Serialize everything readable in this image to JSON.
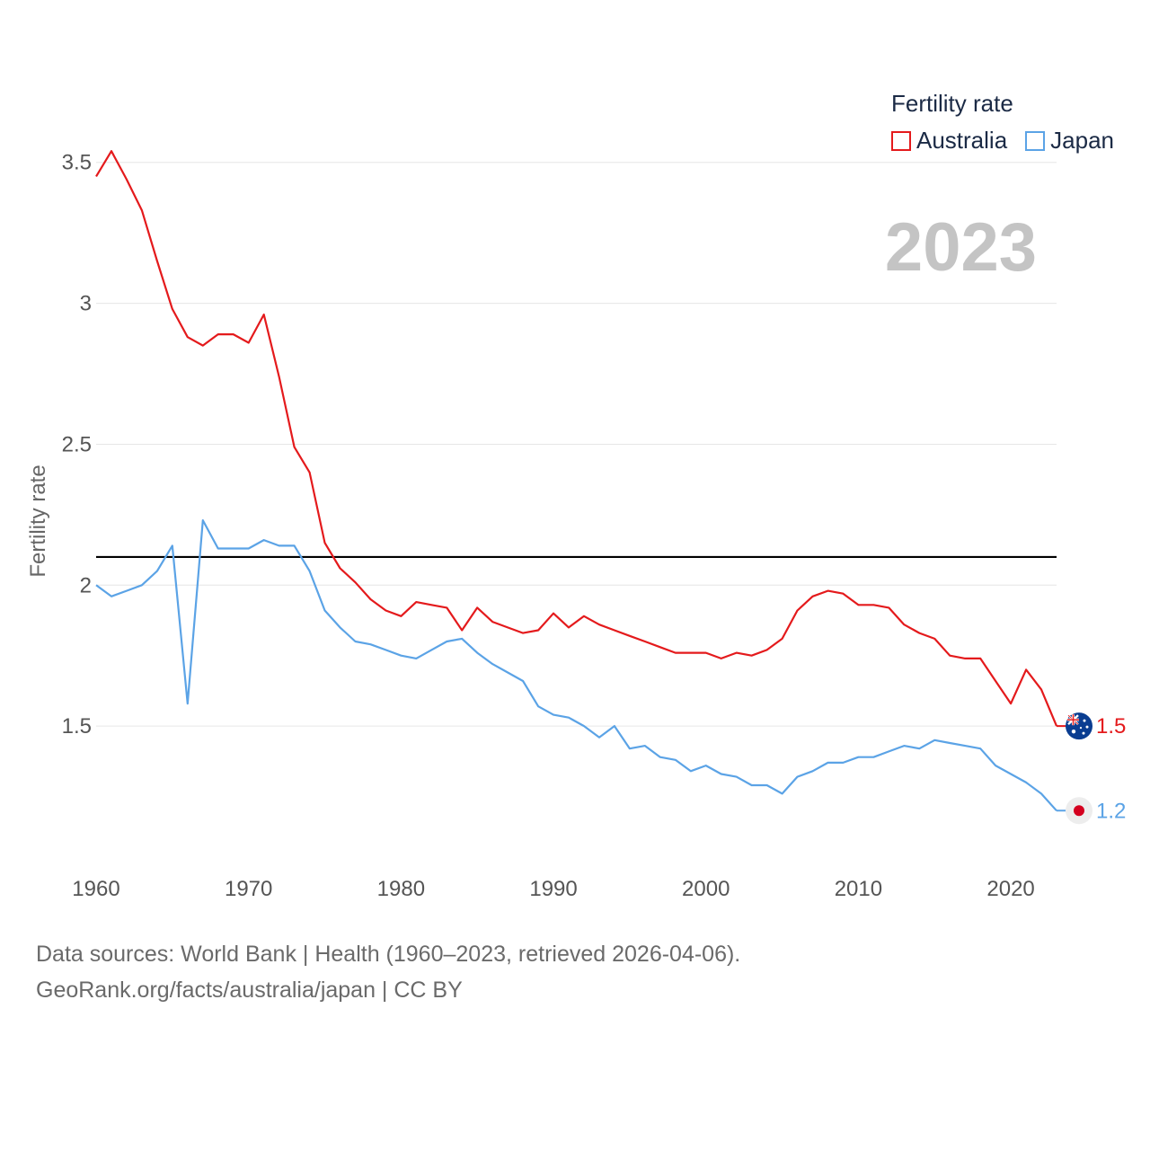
{
  "legend": {
    "title": "Fertility rate",
    "items": [
      {
        "label": "Australia",
        "color": "#e41a1c"
      },
      {
        "label": "Japan",
        "color": "#5ba3e6"
      }
    ]
  },
  "year_label": "2023",
  "footer": {
    "line1": "Data sources: World Bank | Health (1960–2023, retrieved 2026-04-06).",
    "line2": "GeoRank.org/facts/australia/japan | CC BY"
  },
  "chart_data": {
    "type": "line",
    "title": "Fertility rate",
    "xlabel": "",
    "ylabel": "Fertility rate",
    "xlim": [
      1960,
      2023
    ],
    "ylim": [
      1.0,
      3.7
    ],
    "x_ticks": [
      1960,
      1970,
      1980,
      1990,
      2000,
      2010,
      2020
    ],
    "y_ticks": [
      1.5,
      2,
      2.5,
      3,
      3.5
    ],
    "y_tick_labels": [
      "1.5",
      "2",
      "2.5",
      "3",
      "3.5"
    ],
    "reference_line": {
      "y": 2.1,
      "color": "#000000"
    },
    "series": [
      {
        "name": "Australia",
        "color": "#e41a1c",
        "end_label": "1.5",
        "flag": "australia-flag",
        "x": [
          1960,
          1961,
          1962,
          1963,
          1964,
          1965,
          1966,
          1967,
          1968,
          1969,
          1970,
          1971,
          1972,
          1973,
          1974,
          1975,
          1976,
          1977,
          1978,
          1979,
          1980,
          1981,
          1982,
          1983,
          1984,
          1985,
          1986,
          1987,
          1988,
          1989,
          1990,
          1991,
          1992,
          1993,
          1994,
          1995,
          1996,
          1997,
          1998,
          1999,
          2000,
          2001,
          2002,
          2003,
          2004,
          2005,
          2006,
          2007,
          2008,
          2009,
          2010,
          2011,
          2012,
          2013,
          2014,
          2015,
          2016,
          2017,
          2018,
          2019,
          2020,
          2021,
          2022,
          2023
        ],
        "values": [
          3.45,
          3.54,
          3.44,
          3.33,
          3.15,
          2.98,
          2.88,
          2.85,
          2.89,
          2.89,
          2.86,
          2.96,
          2.74,
          2.49,
          2.4,
          2.15,
          2.06,
          2.01,
          1.95,
          1.91,
          1.89,
          1.94,
          1.93,
          1.92,
          1.84,
          1.92,
          1.87,
          1.85,
          1.83,
          1.84,
          1.9,
          1.85,
          1.89,
          1.86,
          1.84,
          1.82,
          1.8,
          1.78,
          1.76,
          1.76,
          1.76,
          1.74,
          1.76,
          1.75,
          1.77,
          1.81,
          1.91,
          1.96,
          1.98,
          1.97,
          1.93,
          1.93,
          1.92,
          1.86,
          1.83,
          1.81,
          1.75,
          1.74,
          1.74,
          1.66,
          1.58,
          1.7,
          1.63,
          1.5
        ]
      },
      {
        "name": "Japan",
        "color": "#5ba3e6",
        "end_label": "1.2",
        "flag": "japan-flag",
        "x": [
          1960,
          1961,
          1962,
          1963,
          1964,
          1965,
          1966,
          1967,
          1968,
          1969,
          1970,
          1971,
          1972,
          1973,
          1974,
          1975,
          1976,
          1977,
          1978,
          1979,
          1980,
          1981,
          1982,
          1983,
          1984,
          1985,
          1986,
          1987,
          1988,
          1989,
          1990,
          1991,
          1992,
          1993,
          1994,
          1995,
          1996,
          1997,
          1998,
          1999,
          2000,
          2001,
          2002,
          2003,
          2004,
          2005,
          2006,
          2007,
          2008,
          2009,
          2010,
          2011,
          2012,
          2013,
          2014,
          2015,
          2016,
          2017,
          2018,
          2019,
          2020,
          2021,
          2022,
          2023
        ],
        "values": [
          2.0,
          1.96,
          1.98,
          2.0,
          2.05,
          2.14,
          1.58,
          2.23,
          2.13,
          2.13,
          2.13,
          2.16,
          2.14,
          2.14,
          2.05,
          1.91,
          1.85,
          1.8,
          1.79,
          1.77,
          1.75,
          1.74,
          1.77,
          1.8,
          1.81,
          1.76,
          1.72,
          1.69,
          1.66,
          1.57,
          1.54,
          1.53,
          1.5,
          1.46,
          1.5,
          1.42,
          1.43,
          1.39,
          1.38,
          1.34,
          1.36,
          1.33,
          1.32,
          1.29,
          1.29,
          1.26,
          1.32,
          1.34,
          1.37,
          1.37,
          1.39,
          1.39,
          1.41,
          1.43,
          1.42,
          1.45,
          1.44,
          1.43,
          1.42,
          1.36,
          1.33,
          1.3,
          1.26,
          1.2
        ]
      }
    ]
  }
}
